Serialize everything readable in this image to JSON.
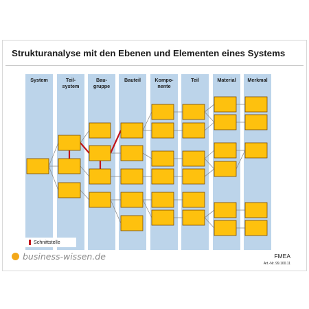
{
  "title": "Strukturanalyse mit den Ebenen und Elementen eines Systems",
  "columns": [
    {
      "line1": "System",
      "line2": "",
      "line3": ""
    },
    {
      "line1": "Teil-",
      "line2": "system",
      "line3": ""
    },
    {
      "line1": "Bau-",
      "line2": "gruppe",
      "line3": ""
    },
    {
      "line1": "Bauteil",
      "line2": "",
      "line3": ""
    },
    {
      "line1": "Kompo-",
      "line2": "nente",
      "line3": ""
    },
    {
      "line1": "Teil",
      "line2": "",
      "line3": ""
    },
    {
      "line1": "Material",
      "line2": "",
      "line3": ""
    },
    {
      "line1": "Merkmal",
      "line2": "",
      "line3": ""
    }
  ],
  "legend": {
    "label": "Schnittstelle"
  },
  "footer": {
    "logo": "business-wissen.de",
    "topic": "FMEA",
    "article_number": "Art.-Nr. 99.100.11"
  },
  "colors": {
    "element_fill": "#fec10e",
    "element_border": "#7a4a00",
    "column_fill": "#bcd4ea",
    "connector": "#8c8c8c",
    "interface": "#c0141b",
    "logo_dot": "#f3a81a"
  }
}
